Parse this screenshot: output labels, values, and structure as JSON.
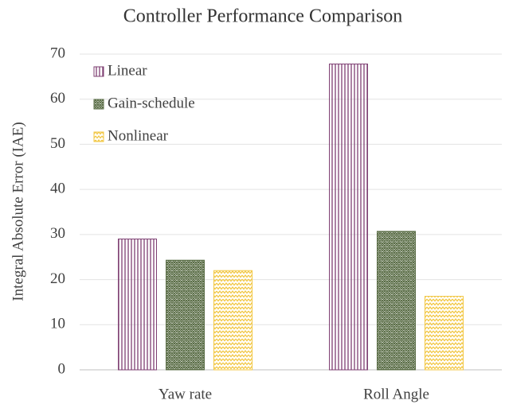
{
  "chart_data": {
    "type": "bar",
    "title": "Controller Performance Comparison",
    "y_label": "Integral Absolute Error (IAE)",
    "categories": [
      "Yaw rate",
      "Roll Angle"
    ],
    "series": [
      {
        "name": "Linear",
        "color": "#7e3f72",
        "pattern": "vertical-lines",
        "values": [
          29,
          67.8
        ]
      },
      {
        "name": "Gain-schedule",
        "color": "#5b6e47",
        "pattern": "crosshatch",
        "values": [
          24.3,
          30.7
        ]
      },
      {
        "name": "Nonlinear",
        "color": "#f2c744",
        "pattern": "zigzag",
        "values": [
          22,
          16.3
        ]
      }
    ],
    "ylim": [
      0,
      70
    ],
    "yticks": [
      0,
      10,
      20,
      30,
      40,
      50,
      60,
      70
    ],
    "grid": true,
    "legend": "upper left"
  }
}
